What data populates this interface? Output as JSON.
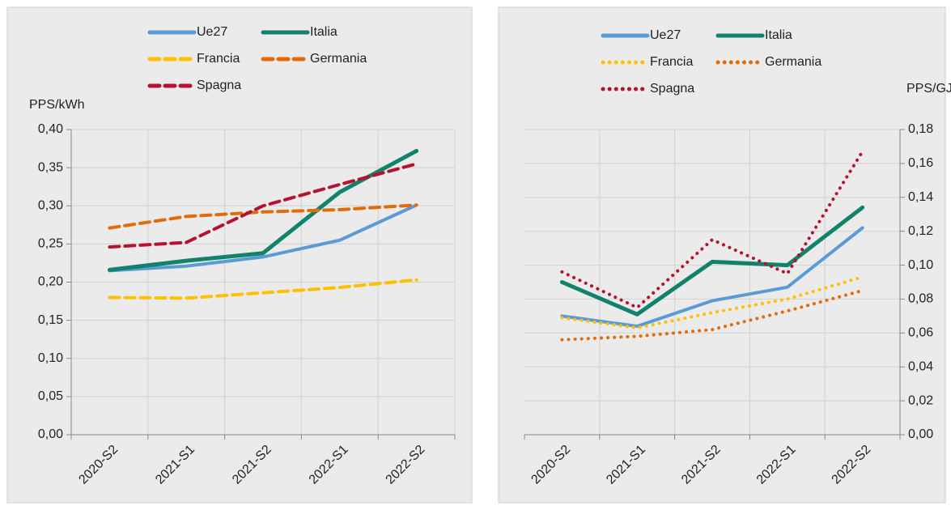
{
  "chart_data": [
    {
      "type": "line",
      "y_label": "PPS/kWh",
      "y_axis_side": "left",
      "grid": true,
      "categories": [
        "2020-S2",
        "2021-S1",
        "2021-S2",
        "2022-S1",
        "2022-S2"
      ],
      "ylim": [
        0,
        0.4
      ],
      "yticks": [
        {
          "value": 0,
          "label": "0,00"
        },
        {
          "value": 0.05,
          "label": "0,05"
        },
        {
          "value": 0.1,
          "label": "0,10"
        },
        {
          "value": 0.15,
          "label": "0,15"
        },
        {
          "value": 0.2,
          "label": "0,20"
        },
        {
          "value": 0.25,
          "label": "0,25"
        },
        {
          "value": 0.3,
          "label": "0,30"
        },
        {
          "value": 0.35,
          "label": "0,35"
        },
        {
          "value": 0.4,
          "label": "0,40"
        }
      ],
      "series": [
        {
          "name": "Ue27",
          "color": "#5b9bd5",
          "style": "solid",
          "values": [
            0.215,
            0.221,
            0.233,
            0.255,
            0.301
          ]
        },
        {
          "name": "Italia",
          "color": "#12826a",
          "style": "solid",
          "values": [
            0.216,
            0.228,
            0.238,
            0.318,
            0.372
          ]
        },
        {
          "name": "Francia",
          "color": "#ffc000",
          "style": "dashed",
          "values": [
            0.18,
            0.179,
            0.186,
            0.193,
            0.203
          ]
        },
        {
          "name": "Germania",
          "color": "#e36c0a",
          "style": "dashed",
          "values": [
            0.271,
            0.286,
            0.292,
            0.295,
            0.301
          ]
        },
        {
          "name": "Spagna",
          "color": "#b5122f",
          "style": "dashed",
          "values": [
            0.246,
            0.252,
            0.3,
            0.328,
            0.355
          ]
        }
      ]
    },
    {
      "type": "line",
      "y_label": "PPS/GJ",
      "y_axis_side": "right",
      "grid": true,
      "categories": [
        "2020-S2",
        "2021-S1",
        "2021-S2",
        "2022-S1",
        "2022-S2"
      ],
      "ylim": [
        0,
        0.18
      ],
      "yticks": [
        {
          "value": 0,
          "label": "0,00"
        },
        {
          "value": 0.02,
          "label": "0,02"
        },
        {
          "value": 0.04,
          "label": "0,04"
        },
        {
          "value": 0.06,
          "label": "0,06"
        },
        {
          "value": 0.08,
          "label": "0,08"
        },
        {
          "value": 0.1,
          "label": "0,10"
        },
        {
          "value": 0.12,
          "label": "0,12"
        },
        {
          "value": 0.14,
          "label": "0,14"
        },
        {
          "value": 0.16,
          "label": "0,16"
        },
        {
          "value": 0.18,
          "label": "0,18"
        }
      ],
      "series": [
        {
          "name": "Ue27",
          "color": "#5b9bd5",
          "style": "solid",
          "values": [
            0.07,
            0.064,
            0.079,
            0.087,
            0.122
          ]
        },
        {
          "name": "Italia",
          "color": "#12826a",
          "style": "solid",
          "values": [
            0.09,
            0.071,
            0.102,
            0.1,
            0.134
          ]
        },
        {
          "name": "Francia",
          "color": "#ffc000",
          "style": "dotted",
          "values": [
            0.069,
            0.063,
            0.072,
            0.08,
            0.093
          ]
        },
        {
          "name": "Germania",
          "color": "#e36c0a",
          "style": "dotted",
          "values": [
            0.056,
            0.058,
            0.062,
            0.073,
            0.085
          ]
        },
        {
          "name": "Spagna",
          "color": "#b5122f",
          "style": "dotted",
          "values": [
            0.096,
            0.075,
            0.115,
            0.095,
            0.167
          ]
        }
      ]
    }
  ]
}
